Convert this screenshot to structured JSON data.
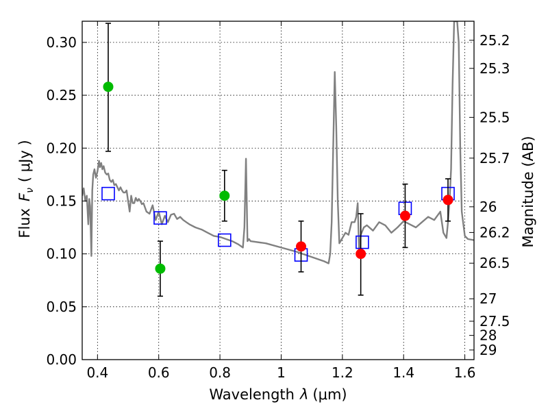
{
  "chart_data": {
    "type": "scatter",
    "xlabel_prefix": "Wavelength",
    "xlabel_symbol": "λ",
    "xlabel_unit": "(μm)",
    "ylabel_prefix": "Flux",
    "ylabel_symbol": "F",
    "ylabel_subscript": "ν",
    "ylabel_unit": "( μJy )",
    "y2label": "Magnitude (AB)",
    "xlim": [
      0.35,
      1.63
    ],
    "ylim": [
      0.0,
      0.32
    ],
    "grid": true,
    "x_ticks": [
      {
        "value": 0.4,
        "label": "0.4"
      },
      {
        "value": 0.6,
        "label": "0.6"
      },
      {
        "value": 0.8,
        "label": "0.8"
      },
      {
        "value": 1.0,
        "label": "1"
      },
      {
        "value": 1.2,
        "label": "1.2"
      },
      {
        "value": 1.4,
        "label": "1.4"
      },
      {
        "value": 1.6,
        "label": "1.6"
      }
    ],
    "y_ticks": [
      {
        "value": 0.0,
        "label": "0.00"
      },
      {
        "value": 0.05,
        "label": "0.05"
      },
      {
        "value": 0.1,
        "label": "0.10"
      },
      {
        "value": 0.15,
        "label": "0.15"
      },
      {
        "value": 0.2,
        "label": "0.20"
      },
      {
        "value": 0.25,
        "label": "0.25"
      },
      {
        "value": 0.3,
        "label": "0.30"
      }
    ],
    "y2_ticks": [
      {
        "value": 25.2,
        "label": "25.2"
      },
      {
        "value": 25.3,
        "label": "25.3"
      },
      {
        "value": 25.5,
        "label": "25.5"
      },
      {
        "value": 25.7,
        "label": "25.7"
      },
      {
        "value": 26.0,
        "label": "26"
      },
      {
        "value": 26.2,
        "label": "26.2"
      },
      {
        "value": 26.5,
        "label": "26.5"
      },
      {
        "value": 27.0,
        "label": "27"
      },
      {
        "value": 27.5,
        "label": "27.5"
      },
      {
        "value": 28.0,
        "label": "28"
      },
      {
        "value": 29.0,
        "label": "29"
      }
    ],
    "series": [
      {
        "kind": "line",
        "color": "#808080",
        "x": [
          0.35,
          0.355,
          0.36,
          0.365,
          0.37,
          0.373,
          0.376,
          0.38,
          0.383,
          0.386,
          0.39,
          0.395,
          0.4,
          0.405,
          0.408,
          0.412,
          0.416,
          0.42,
          0.425,
          0.43,
          0.435,
          0.44,
          0.445,
          0.45,
          0.455,
          0.46,
          0.465,
          0.47,
          0.475,
          0.48,
          0.485,
          0.49,
          0.495,
          0.5,
          0.505,
          0.51,
          0.515,
          0.52,
          0.525,
          0.53,
          0.535,
          0.54,
          0.545,
          0.55,
          0.56,
          0.57,
          0.58,
          0.59,
          0.6,
          0.61,
          0.62,
          0.63,
          0.64,
          0.65,
          0.66,
          0.67,
          0.68,
          0.69,
          0.7,
          0.72,
          0.74,
          0.76,
          0.78,
          0.8,
          0.82,
          0.84,
          0.86,
          0.875,
          0.88,
          0.885,
          0.89,
          0.895,
          0.9,
          0.95,
          1.0,
          1.05,
          1.1,
          1.14,
          1.155,
          1.16,
          1.165,
          1.17,
          1.175,
          1.18,
          1.185,
          1.19,
          1.2,
          1.21,
          1.22,
          1.23,
          1.24,
          1.245,
          1.25,
          1.255,
          1.26,
          1.27,
          1.28,
          1.3,
          1.32,
          1.34,
          1.36,
          1.38,
          1.4,
          1.42,
          1.44,
          1.46,
          1.48,
          1.5,
          1.52,
          1.53,
          1.54,
          1.545,
          1.55,
          1.555,
          1.56,
          1.565,
          1.57,
          1.575,
          1.58,
          1.585,
          1.59,
          1.6,
          1.61,
          1.63
        ],
        "y": [
          0.155,
          0.162,
          0.15,
          0.155,
          0.128,
          0.152,
          0.145,
          0.098,
          0.16,
          0.175,
          0.18,
          0.172,
          0.178,
          0.188,
          0.182,
          0.186,
          0.18,
          0.183,
          0.177,
          0.175,
          0.176,
          0.17,
          0.168,
          0.17,
          0.165,
          0.166,
          0.163,
          0.16,
          0.163,
          0.16,
          0.158,
          0.158,
          0.16,
          0.15,
          0.14,
          0.155,
          0.148,
          0.148,
          0.153,
          0.15,
          0.152,
          0.15,
          0.147,
          0.148,
          0.14,
          0.138,
          0.146,
          0.132,
          0.14,
          0.128,
          0.136,
          0.13,
          0.137,
          0.138,
          0.133,
          0.135,
          0.132,
          0.13,
          0.128,
          0.125,
          0.123,
          0.12,
          0.117,
          0.116,
          0.114,
          0.112,
          0.109,
          0.106,
          0.125,
          0.19,
          0.112,
          0.114,
          0.112,
          0.11,
          0.106,
          0.102,
          0.097,
          0.093,
          0.091,
          0.1,
          0.13,
          0.2,
          0.272,
          0.22,
          0.15,
          0.11,
          0.115,
          0.12,
          0.118,
          0.13,
          0.13,
          0.135,
          0.148,
          0.1,
          0.118,
          0.125,
          0.127,
          0.122,
          0.13,
          0.127,
          0.12,
          0.125,
          0.131,
          0.128,
          0.125,
          0.13,
          0.135,
          0.132,
          0.14,
          0.12,
          0.115,
          0.13,
          0.15,
          0.18,
          0.26,
          0.32,
          0.32,
          0.32,
          0.3,
          0.2,
          0.14,
          0.117,
          0.114,
          0.113
        ]
      },
      {
        "kind": "open-square",
        "color": "#0000ff",
        "x": [
          0.435,
          0.605,
          0.815,
          1.065,
          1.265,
          1.405,
          1.545
        ],
        "y": [
          0.157,
          0.134,
          0.113,
          0.099,
          0.111,
          0.143,
          0.157
        ]
      },
      {
        "kind": "point-errorbar",
        "color": "#00bb00",
        "x": [
          0.435,
          0.605,
          0.815
        ],
        "y": [
          0.258,
          0.086,
          0.155
        ],
        "yerr_low": [
          0.197,
          0.06,
          0.131
        ],
        "yerr_high": [
          0.318,
          0.112,
          0.179
        ]
      },
      {
        "kind": "point-errorbar",
        "color": "#ff0000",
        "x": [
          1.065,
          1.26,
          1.405,
          1.545
        ],
        "y": [
          0.107,
          0.1,
          0.136,
          0.151
        ],
        "yerr_low": [
          0.083,
          0.061,
          0.106,
          0.131
        ],
        "yerr_high": [
          0.131,
          0.138,
          0.166,
          0.171
        ]
      }
    ]
  }
}
